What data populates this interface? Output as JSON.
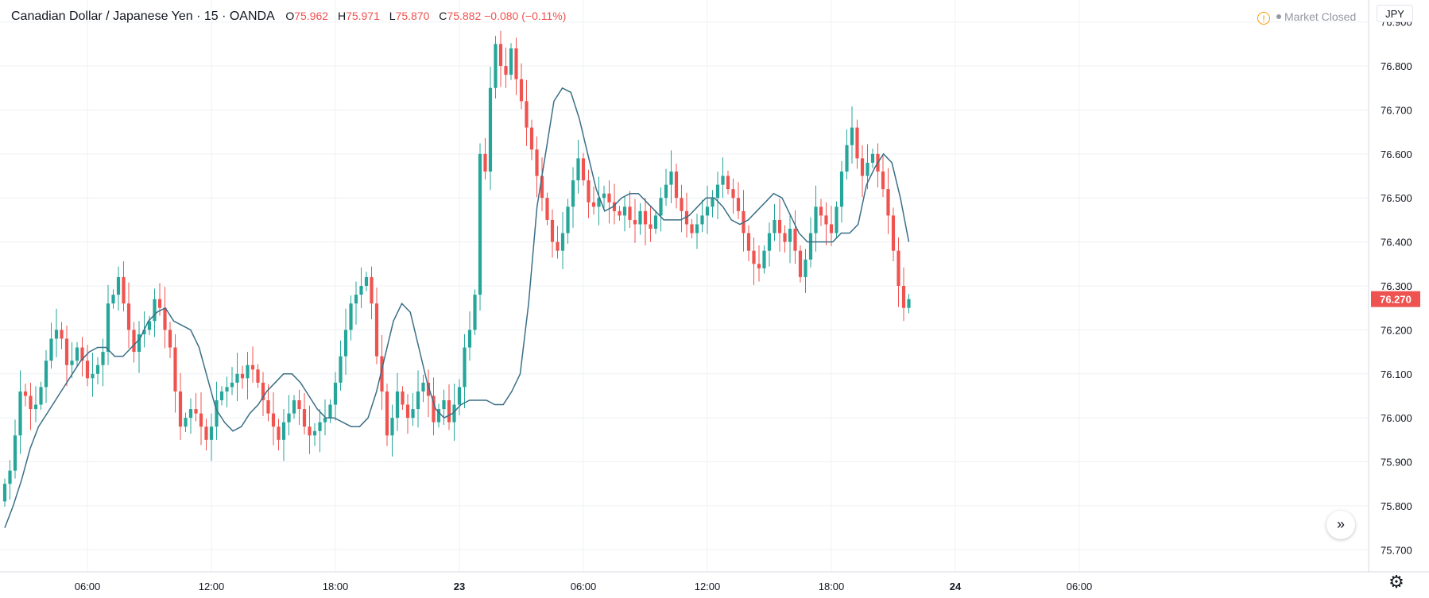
{
  "header": {
    "symbol": "Canadian Dollar / Japanese Yen · 15 · OANDA",
    "ohlc": [
      {
        "k": "O",
        "v": "75.962"
      },
      {
        "k": "H",
        "v": "75.971"
      },
      {
        "k": "L",
        "v": "75.870"
      },
      {
        "k": "C",
        "v": "75.882 −0.080 (−0.11%)"
      }
    ]
  },
  "status": {
    "market": "Market Closed",
    "currency": "JPY"
  },
  "last_price": "76.270",
  "colors": {
    "up": "#26a69a",
    "down": "#ef5350",
    "ma": "#3a6f86",
    "grid": "#eef0f3",
    "axis_text": "#131722"
  },
  "icons": {
    "warning": "warning-icon",
    "scroll": "scroll-to-latest-icon",
    "settings": "gear-icon"
  },
  "chart_data": {
    "type": "candlestick",
    "series_name": "",
    "ylim": [
      75.65,
      76.95
    ],
    "y_ticks": [
      75.7,
      75.8,
      75.9,
      76.0,
      76.1,
      76.2,
      76.3,
      76.4,
      76.5,
      76.6,
      76.7,
      76.8,
      76.9
    ],
    "x_ticks": [
      {
        "i": 16,
        "label": "06:00"
      },
      {
        "i": 40,
        "label": "12:00"
      },
      {
        "i": 64,
        "label": "18:00"
      },
      {
        "i": 88,
        "label": "23"
      },
      {
        "i": 112,
        "label": "06:00"
      },
      {
        "i": 136,
        "label": "12:00"
      },
      {
        "i": 160,
        "label": "18:00"
      },
      {
        "i": 184,
        "label": "24"
      },
      {
        "i": 208,
        "label": "06:00"
      }
    ],
    "close_path": [
      75.85,
      75.88,
      75.96,
      76.06,
      76.05,
      76.02,
      76.03,
      76.07,
      76.13,
      76.18,
      76.2,
      76.18,
      76.12,
      76.13,
      76.16,
      76.13,
      76.09,
      76.1,
      76.12,
      76.15,
      76.26,
      76.28,
      76.32,
      76.26,
      76.2,
      76.15,
      76.19,
      76.2,
      76.22,
      76.27,
      76.25,
      76.2,
      76.16,
      76.06,
      75.98,
      76.0,
      76.02,
      76.01,
      75.98,
      75.95,
      75.98,
      76.04,
      76.06,
      76.07,
      76.08,
      76.1,
      76.09,
      76.12,
      76.11,
      76.08,
      76.04,
      76.01,
      75.98,
      75.95,
      75.99,
      76.01,
      76.04,
      76.02,
      75.98,
      75.96,
      75.97,
      75.99,
      76.0,
      76.03,
      76.08,
      76.14,
      76.2,
      76.26,
      76.28,
      76.3,
      76.32,
      76.26,
      76.14,
      76.06,
      75.96,
      76.0,
      76.06,
      76.03,
      76.0,
      76.02,
      76.06,
      76.08,
      76.05,
      75.99,
      76.02,
      76.04,
      75.99,
      76.03,
      76.07,
      76.16,
      76.2,
      76.28,
      76.6,
      76.56,
      76.75,
      76.85,
      76.8,
      76.78,
      76.84,
      76.77,
      76.72,
      76.66,
      76.61,
      76.55,
      76.5,
      76.45,
      76.4,
      76.38,
      76.42,
      76.48,
      76.54,
      76.59,
      76.54,
      76.49,
      76.48,
      76.5,
      76.51,
      76.49,
      76.47,
      76.46,
      76.48,
      76.45,
      76.44,
      76.47,
      76.44,
      76.43,
      76.46,
      76.5,
      76.53,
      76.56,
      76.5,
      76.47,
      76.44,
      76.42,
      76.44,
      76.46,
      76.48,
      76.5,
      76.53,
      76.55,
      76.52,
      76.5,
      76.47,
      76.42,
      76.38,
      76.35,
      76.34,
      76.38,
      76.42,
      76.45,
      76.42,
      76.4,
      76.43,
      76.38,
      76.32,
      76.36,
      76.42,
      76.48,
      76.46,
      76.44,
      76.42,
      76.48,
      76.56,
      76.62,
      76.66,
      76.59,
      76.55,
      76.58,
      76.6,
      76.56,
      76.52,
      76.46,
      76.38,
      76.3,
      76.25,
      76.27
    ],
    "moving_average": [
      75.75,
      75.8,
      75.86,
      75.93,
      75.98,
      76.01,
      76.04,
      76.07,
      76.1,
      76.13,
      76.15,
      76.16,
      76.16,
      76.14,
      76.14,
      76.16,
      76.18,
      76.22,
      76.24,
      76.25,
      76.22,
      76.21,
      76.2,
      76.16,
      76.09,
      76.02,
      75.99,
      75.97,
      75.98,
      76.01,
      76.03,
      76.06,
      76.08,
      76.1,
      76.1,
      76.08,
      76.05,
      76.02,
      76.0,
      76.0,
      75.99,
      75.98,
      75.98,
      76.0,
      76.06,
      76.14,
      76.22,
      76.26,
      76.24,
      76.16,
      76.08,
      76.02,
      76.0,
      76.01,
      76.03,
      76.04,
      76.04,
      76.04,
      76.03,
      76.03,
      76.06,
      76.1,
      76.26,
      76.48,
      76.6,
      76.72,
      76.75,
      76.74,
      76.68,
      76.6,
      76.52,
      76.47,
      76.48,
      76.5,
      76.51,
      76.51,
      76.49,
      76.47,
      76.45,
      76.45,
      76.45,
      76.46,
      76.48,
      76.5,
      76.5,
      76.48,
      76.45,
      76.44,
      76.45,
      76.47,
      76.49,
      76.51,
      76.5,
      76.46,
      76.42,
      76.4,
      76.4,
      76.4,
      76.4,
      76.42,
      76.42,
      76.44,
      76.53,
      76.57,
      76.6,
      76.58,
      76.5,
      76.4
    ]
  }
}
